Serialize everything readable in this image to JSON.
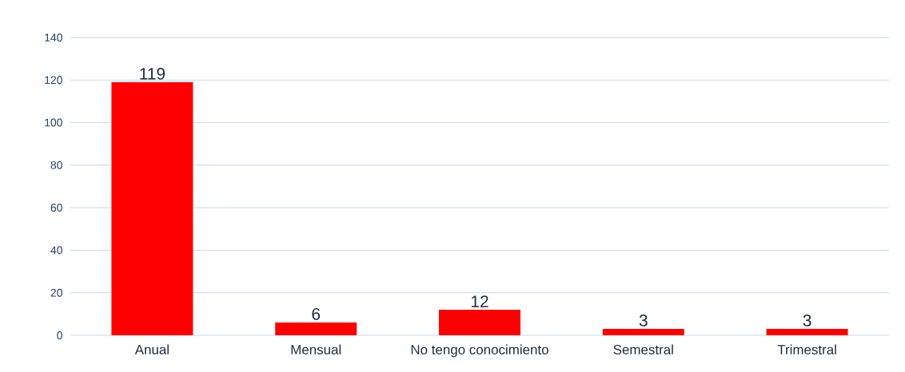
{
  "chart_data": {
    "type": "bar",
    "categories": [
      "Anual",
      "Mensual",
      "No tengo conocimiento",
      "Semestral",
      "Trimestral"
    ],
    "values": [
      119,
      6,
      12,
      3,
      3
    ],
    "color": "#ff0000",
    "ylim": [
      0,
      140
    ],
    "yticks": [
      0,
      20,
      40,
      60,
      80,
      100,
      120,
      140
    ],
    "grid": "y",
    "data_labels": true
  }
}
